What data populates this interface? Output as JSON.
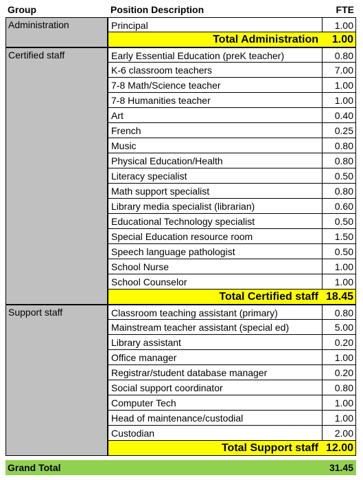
{
  "headers": {
    "group": "Group",
    "position": "Position Description",
    "fte": "FTE"
  },
  "groups": [
    {
      "name": "Administration",
      "rows": [
        {
          "position": "Principal",
          "fte": "1.00"
        }
      ],
      "subtotal_label": "Total Administration",
      "subtotal_value": "1.00"
    },
    {
      "name": "Certified staff",
      "rows": [
        {
          "position": "Early Essential Education (preK teacher)",
          "fte": "0.80"
        },
        {
          "position": "K-6 classroom teachers",
          "fte": "7.00"
        },
        {
          "position": "7-8 Math/Science teacher",
          "fte": "1.00"
        },
        {
          "position": "7-8 Humanities teacher",
          "fte": "1.00"
        },
        {
          "position": "Art",
          "fte": "0.40"
        },
        {
          "position": "French",
          "fte": "0.25"
        },
        {
          "position": "Music",
          "fte": "0.80"
        },
        {
          "position": "Physical Education/Health",
          "fte": "0.80"
        },
        {
          "position": "Literacy specialist",
          "fte": "0.50"
        },
        {
          "position": "Math support specialist",
          "fte": "0.80"
        },
        {
          "position": "Library media specialist (librarian)",
          "fte": "0.60"
        },
        {
          "position": "Educational Technology specialist",
          "fte": "0.50"
        },
        {
          "position": "Special Education resource room",
          "fte": "1.50"
        },
        {
          "position": "Speech language pathologist",
          "fte": "0.50"
        },
        {
          "position": "School Nurse",
          "fte": "1.00"
        },
        {
          "position": "School Counselor",
          "fte": "1.00"
        }
      ],
      "subtotal_label": "Total Certified staff",
      "subtotal_value": "18.45"
    },
    {
      "name": "Support staff",
      "rows": [
        {
          "position": "Classroom teaching assistant (primary)",
          "fte": "0.80"
        },
        {
          "position": "Mainstream teacher assistant (special ed)",
          "fte": "5.00"
        },
        {
          "position": "Library assistant",
          "fte": "0.20"
        },
        {
          "position": "Office manager",
          "fte": "1.00"
        },
        {
          "position": "Registrar/student database manager",
          "fte": "0.20"
        },
        {
          "position": "Social support coordinator",
          "fte": "0.80"
        },
        {
          "position": "Computer Tech",
          "fte": "1.00"
        },
        {
          "position": "Head of maintenance/custodial",
          "fte": "1.00"
        },
        {
          "position": "Custodian",
          "fte": "2.00"
        }
      ],
      "subtotal_label": "Total Support staff",
      "subtotal_value": "12.00"
    }
  ],
  "grand_total": {
    "label": "Grand Total",
    "value": "31.45"
  },
  "colors": {
    "group_fill": "#c0c0c0",
    "subtotal_fill": "#ffff00",
    "grand_total_fill": "#92d050"
  }
}
